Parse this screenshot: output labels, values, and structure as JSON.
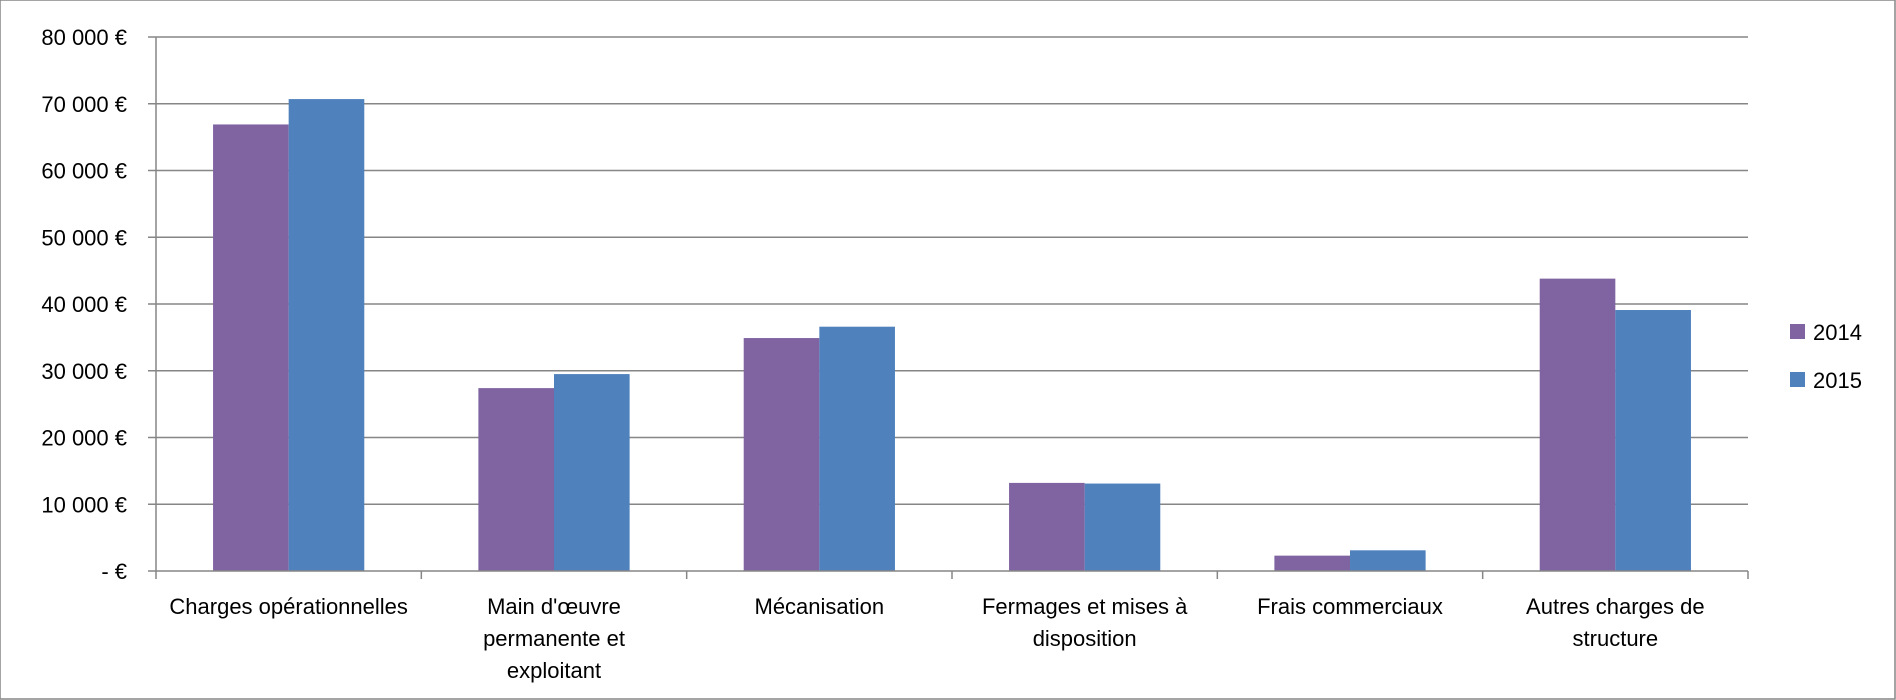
{
  "chart_data": {
    "type": "bar",
    "categories": [
      [
        "Charges opérationnelles"
      ],
      [
        "Main d'œuvre",
        "permanente et",
        "exploitant"
      ],
      [
        "Mécanisation"
      ],
      [
        "Fermages et mises à",
        "disposition"
      ],
      [
        "Frais commerciaux"
      ],
      [
        "Autres charges de",
        "structure"
      ]
    ],
    "series": [
      {
        "name": "2014",
        "color": "#8064a2",
        "values": [
          66900,
          27400,
          34900,
          13200,
          2300,
          43800
        ]
      },
      {
        "name": "2015",
        "color": "#4f81bd",
        "values": [
          70700,
          29500,
          36600,
          13100,
          3100,
          39100
        ]
      }
    ],
    "ylim": [
      0,
      80000
    ],
    "ytick_values": [
      0,
      10000,
      20000,
      30000,
      40000,
      50000,
      60000,
      70000,
      80000
    ],
    "ytick_labels": [
      "-  €",
      "10 000 €",
      "20 000 €",
      "30 000 €",
      "40 000 €",
      "50 000 €",
      "60 000 €",
      "70 000 €",
      "80 000 €"
    ],
    "grid": true,
    "legend_position": "right",
    "title": "",
    "xlabel": "",
    "ylabel": ""
  }
}
